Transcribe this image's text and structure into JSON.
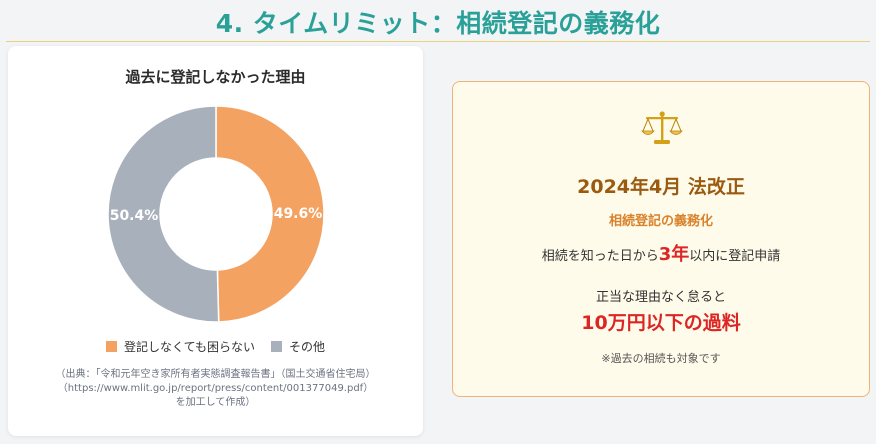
{
  "page": {
    "title": "4. タイムリミット：相続登記の義務化"
  },
  "chart_card": {
    "source_lines": [
      "（出典：「令和元年空き家所有者実態調査報告書」（国土交通省住宅局）",
      "（https://www.mlit.go.jp/report/press/content/001377049.pdf）",
      "を加工して作成）"
    ]
  },
  "chart_data": {
    "type": "pie",
    "title": "過去に登記しなかった理由",
    "donut": true,
    "legend_position": "bottom",
    "series": [
      {
        "name": "登記しなくても困らない",
        "value": 49.6,
        "label": "49.6%",
        "color": "#f4a261"
      },
      {
        "name": "その他",
        "value": 50.4,
        "label": "50.4%",
        "color": "#a8b1bb"
      }
    ]
  },
  "law_card": {
    "icon": "scale-icon",
    "title": "2024年4月 法改正",
    "subtitle": "相続登記の義務化",
    "line1_pre": "相続を知った日から",
    "line1_em": "3年",
    "line1_post": "以内に登記申請",
    "line2": "正当な理由なく怠ると",
    "penalty": "10万円以下の過料",
    "note": "※過去の相続も対象です"
  }
}
